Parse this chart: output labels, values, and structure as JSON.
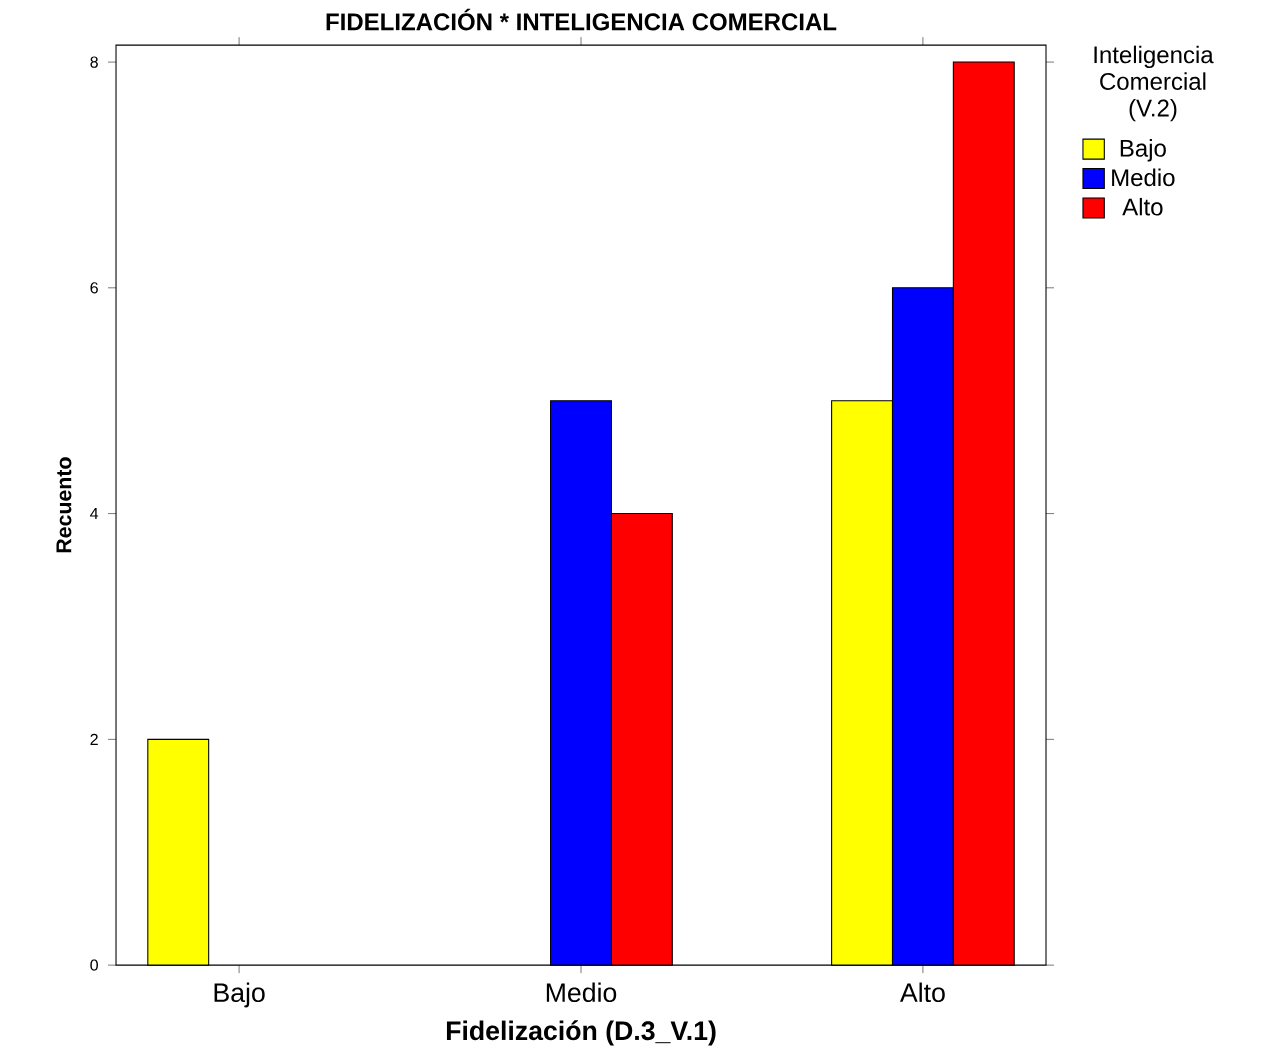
{
  "chart_data": {
    "type": "bar",
    "title": "FIDELIZACIÓN * INTELIGENCIA COMERCIAL",
    "xlabel": "Fidelización (D.3_V.1)",
    "ylabel": "Recuento",
    "legend_title": "Inteligencia Comercial (V.2)",
    "categories": [
      "Bajo",
      "Medio",
      "Alto"
    ],
    "series": [
      {
        "name": "Bajo",
        "color": "#ffff00",
        "values": [
          2,
          null,
          5
        ]
      },
      {
        "name": "Medio",
        "color": "#0000ff",
        "values": [
          null,
          5,
          6
        ]
      },
      {
        "name": "Alto",
        "color": "#ff0000",
        "values": [
          null,
          4,
          8
        ]
      }
    ],
    "ylim": [
      0,
      8.15
    ],
    "yticks": [
      0,
      2,
      4,
      6,
      8
    ],
    "grid": false,
    "legend": "right"
  }
}
